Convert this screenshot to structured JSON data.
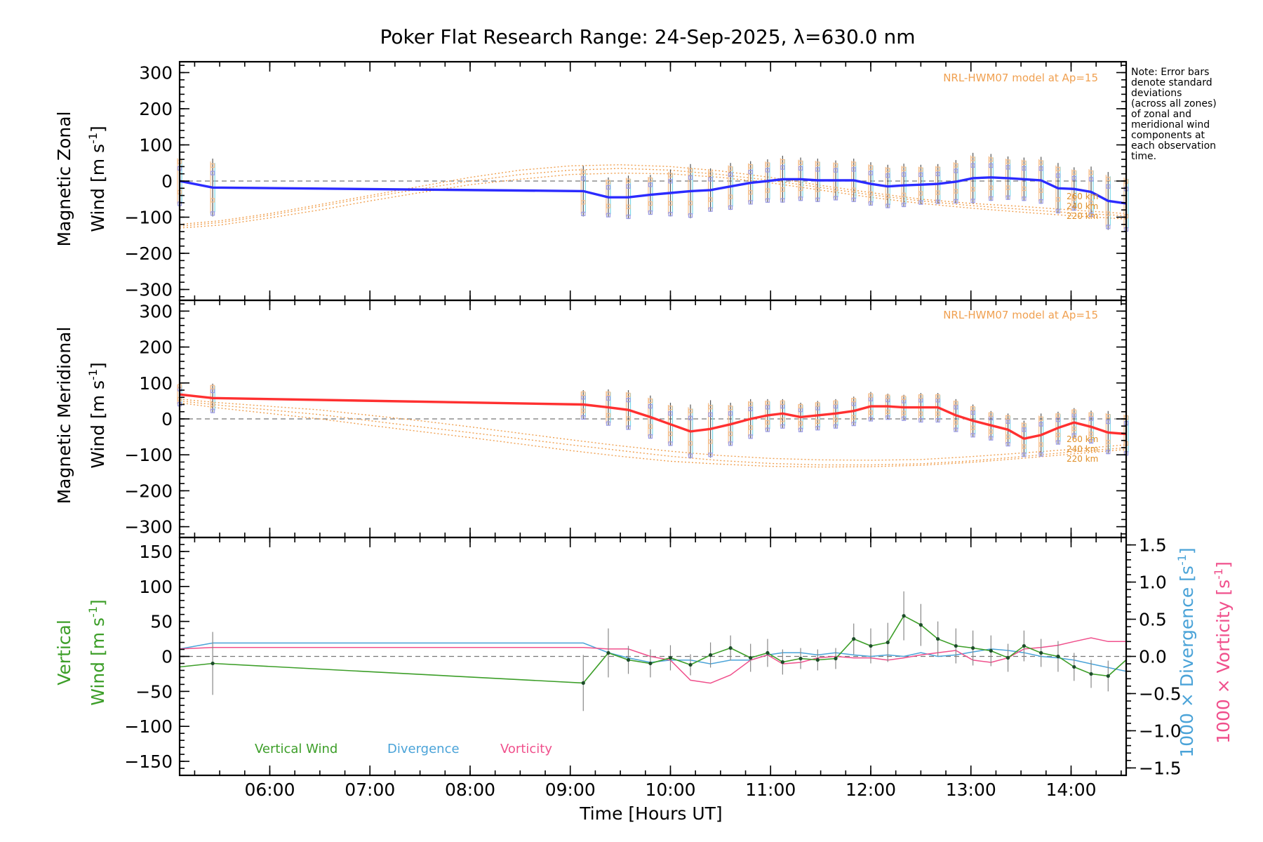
{
  "title": "Poker Flat Research Range: 24-Sep-2025, λ=630.0 nm",
  "note": [
    "Note: Error bars",
    "denote standard",
    "deviations",
    "(across all zones)",
    "of zonal and",
    "meridional wind",
    "components at",
    "each observation",
    "time."
  ],
  "colors": {
    "zonal": "#2b2bff",
    "meridional": "#ff3030",
    "vertical": "#3c9e28",
    "divergence": "#4aa3d8",
    "vorticity": "#f0508c",
    "hwm": "#f0a050",
    "zone_blue": "#9a9ae6",
    "zone_orange": "#f5be8c",
    "zone_cyan": "#7ad8e8",
    "error_dark": "#555555",
    "axis": "#000000",
    "zero": "#777777"
  },
  "x_axis": {
    "label": "Time [Hours UT]",
    "range": [
      5.1,
      14.55
    ],
    "tick_labels": [
      "06:00",
      "07:00",
      "08:00",
      "09:00",
      "10:00",
      "11:00",
      "12:00",
      "13:00",
      "14:00"
    ],
    "tick_values": [
      6,
      7,
      8,
      9,
      10,
      11,
      12,
      13,
      14
    ]
  },
  "chart_data": [
    {
      "type": "line",
      "panel": "zonal",
      "ylabel_line1": "Magnetic Zonal",
      "ylabel_line2": "Wind [m s",
      "ylabel_sup": "-1",
      "ylabel_close": "]",
      "ylim": [
        -330,
        330
      ],
      "y_ticks": [
        -300,
        -200,
        -100,
        0,
        100,
        200,
        300
      ],
      "y_tick_labels": [
        "−300",
        "−200",
        "−100",
        "0",
        "100",
        "200",
        "300"
      ],
      "model_label": "NRL-HWM07 model at Ap=15",
      "altitude_labels": [
        "260 km",
        "240 km",
        "220 km"
      ],
      "x": [
        5.1,
        5.43,
        9.13,
        9.38,
        9.58,
        9.8,
        10.0,
        10.2,
        10.4,
        10.6,
        10.8,
        10.97,
        11.12,
        11.3,
        11.47,
        11.65,
        11.83,
        12.0,
        12.17,
        12.33,
        12.5,
        12.67,
        12.85,
        13.02,
        13.2,
        13.37,
        13.53,
        13.7,
        13.87,
        14.03,
        14.2,
        14.37,
        14.55
      ],
      "series": [
        {
          "name": "Magnetic Zonal Wind",
          "values": [
            0,
            -18,
            -28,
            -45,
            -45,
            -38,
            -33,
            -28,
            -25,
            -15,
            -5,
            0,
            5,
            5,
            2,
            2,
            2,
            -8,
            -15,
            -12,
            -10,
            -8,
            -2,
            8,
            10,
            8,
            5,
            2,
            -20,
            -22,
            -30,
            -55,
            -62
          ]
        }
      ],
      "error_bars": [
        70,
        80,
        70,
        55,
        60,
        55,
        65,
        75,
        60,
        65,
        60,
        60,
        65,
        60,
        60,
        55,
        60,
        60,
        60,
        60,
        55,
        55,
        60,
        70,
        65,
        60,
        60,
        65,
        70,
        60,
        70,
        80,
        80
      ],
      "hwm_model": {
        "x": [
          5.1,
          5.5,
          6.0,
          6.5,
          7.0,
          7.5,
          8.0,
          8.5,
          9.0,
          9.5,
          10.0,
          10.5,
          11.0,
          11.5,
          12.0,
          12.5,
          13.0,
          13.5,
          14.0,
          14.55
        ],
        "series": [
          {
            "name": "260 km",
            "values": [
              -120,
              -110,
              -90,
              -65,
              -40,
              -15,
              10,
              30,
              42,
              45,
              40,
              28,
              10,
              -12,
              -32,
              -50,
              -62,
              -70,
              -80,
              -90
            ]
          },
          {
            "name": "240 km",
            "values": [
              -125,
              -115,
              -95,
              -70,
              -45,
              -22,
              0,
              18,
              30,
              35,
              30,
              18,
              2,
              -18,
              -38,
              -55,
              -68,
              -78,
              -88,
              -96
            ]
          },
          {
            "name": "220 km",
            "values": [
              -130,
              -122,
              -102,
              -80,
              -55,
              -32,
              -10,
              5,
              18,
              22,
              20,
              10,
              -5,
              -25,
              -45,
              -62,
              -75,
              -86,
              -96,
              -105
            ]
          }
        ]
      }
    },
    {
      "type": "line",
      "panel": "meridional",
      "ylabel_line1": "Magnetic Meridional",
      "ylabel_line2": "Wind [m s",
      "ylabel_sup": "-1",
      "ylabel_close": "]",
      "ylim": [
        -330,
        330
      ],
      "y_ticks": [
        -300,
        -200,
        -100,
        0,
        100,
        200,
        300
      ],
      "y_tick_labels": [
        "−300",
        "−200",
        "−100",
        "0",
        "100",
        "200",
        "300"
      ],
      "model_label": "NRL-HWM07 model at Ap=15",
      "altitude_labels": [
        "260 km",
        "240 km",
        "220 km"
      ],
      "x": [
        5.1,
        5.43,
        9.13,
        9.38,
        9.58,
        9.8,
        10.0,
        10.2,
        10.4,
        10.6,
        10.8,
        10.97,
        11.12,
        11.3,
        11.47,
        11.65,
        11.83,
        12.0,
        12.17,
        12.33,
        12.5,
        12.67,
        12.85,
        13.02,
        13.2,
        13.37,
        13.53,
        13.7,
        13.87,
        14.03,
        14.2,
        14.37,
        14.55
      ],
      "series": [
        {
          "name": "Magnetic Meridional Wind",
          "values": [
            68,
            58,
            40,
            32,
            25,
            5,
            -15,
            -35,
            -28,
            -15,
            0,
            10,
            15,
            5,
            10,
            15,
            22,
            35,
            35,
            32,
            32,
            32,
            10,
            -5,
            -18,
            -30,
            -55,
            -45,
            -25,
            -10,
            -22,
            -38,
            -42
          ]
        }
      ],
      "error_bars": [
        30,
        40,
        40,
        50,
        55,
        60,
        60,
        75,
        80,
        60,
        55,
        45,
        40,
        40,
        40,
        40,
        40,
        40,
        35,
        35,
        40,
        40,
        45,
        45,
        40,
        45,
        50,
        60,
        45,
        40,
        45,
        60,
        60
      ],
      "hwm_model": {
        "x": [
          5.1,
          5.5,
          6.0,
          6.5,
          7.0,
          7.5,
          8.0,
          8.5,
          9.0,
          9.5,
          10.0,
          10.5,
          11.0,
          11.5,
          12.0,
          12.5,
          13.0,
          13.5,
          14.0,
          14.55
        ],
        "series": [
          {
            "name": "260 km",
            "values": [
              55,
              45,
              35,
              25,
              10,
              -5,
              -22,
              -40,
              -58,
              -75,
              -90,
              -102,
              -110,
              -114,
              -115,
              -113,
              -105,
              -95,
              -85,
              -72
            ]
          },
          {
            "name": "240 km",
            "values": [
              50,
              38,
              25,
              12,
              -5,
              -22,
              -38,
              -55,
              -72,
              -88,
              -104,
              -116,
              -124,
              -128,
              -128,
              -125,
              -117,
              -105,
              -92,
              -80
            ]
          },
          {
            "name": "220 km",
            "values": [
              45,
              30,
              15,
              0,
              -18,
              -35,
              -52,
              -70,
              -88,
              -104,
              -118,
              -126,
              -132,
              -134,
              -133,
              -129,
              -121,
              -110,
              -98,
              -85
            ]
          }
        ]
      }
    },
    {
      "type": "line",
      "panel": "vertical",
      "ylabel_line1": "Vertical",
      "ylabel_line2": "Wind [m s",
      "ylabel_sup": "-1",
      "ylabel_close": "]",
      "ylim": [
        -170,
        170
      ],
      "y_ticks": [
        -150,
        -100,
        -50,
        0,
        50,
        100,
        150
      ],
      "y_tick_labels": [
        "−150",
        "−100",
        "−50",
        "0",
        "50",
        "100",
        "150"
      ],
      "right_axis": {
        "ylim": [
          -1.6,
          1.6
        ],
        "ticks": [
          -1.5,
          -1.0,
          -0.5,
          0.0,
          0.5,
          1.0,
          1.5
        ],
        "tick_labels": [
          "−1.5",
          "−1.0",
          "−0.5",
          "0.0",
          "0.5",
          "1.0",
          "1.5"
        ],
        "label_div_pre": "1000 × Divergence [s",
        "label_vor_pre": "1000 × Vorticity [s",
        "label_sup": "-1",
        "label_close": "]"
      },
      "legend": [
        "Vertical Wind",
        "Divergence",
        "Vorticity"
      ],
      "x": [
        5.1,
        5.43,
        9.13,
        9.38,
        9.58,
        9.8,
        10.0,
        10.2,
        10.4,
        10.6,
        10.8,
        10.97,
        11.12,
        11.3,
        11.47,
        11.65,
        11.83,
        12.0,
        12.17,
        12.33,
        12.5,
        12.67,
        12.85,
        13.02,
        13.2,
        13.37,
        13.53,
        13.7,
        13.87,
        14.03,
        14.2,
        14.37,
        14.55
      ],
      "series": [
        {
          "name": "Vertical Wind",
          "axis": "left",
          "values": [
            -15,
            -10,
            -38,
            5,
            -5,
            -10,
            -2,
            -12,
            2,
            12,
            -2,
            5,
            -8,
            -3,
            -5,
            -3,
            25,
            15,
            20,
            58,
            45,
            25,
            15,
            12,
            8,
            -2,
            15,
            5,
            0,
            -15,
            -25,
            -28,
            -5
          ]
        },
        {
          "name": "Divergence",
          "axis": "right",
          "values": [
            0.1,
            0.18,
            0.18,
            0.05,
            -0.02,
            -0.08,
            -0.05,
            -0.05,
            -0.1,
            -0.05,
            -0.05,
            0.02,
            0.05,
            0.05,
            0.02,
            0.05,
            0.02,
            0.0,
            0.02,
            0.0,
            0.05,
            0.0,
            0.02,
            0.06,
            0.1,
            0.08,
            0.05,
            0.0,
            -0.02,
            -0.05,
            -0.1,
            -0.15,
            -0.2
          ]
        },
        {
          "name": "Vorticity",
          "axis": "right",
          "values": [
            0.1,
            0.12,
            0.12,
            0.1,
            0.1,
            0.0,
            -0.05,
            -0.32,
            -0.36,
            -0.25,
            -0.05,
            0.02,
            -0.1,
            -0.08,
            -0.02,
            0.0,
            -0.02,
            -0.02,
            -0.05,
            -0.02,
            0.02,
            0.05,
            0.08,
            -0.05,
            -0.08,
            -0.02,
            0.1,
            0.12,
            0.15,
            0.2,
            0.25,
            0.2,
            0.2
          ]
        }
      ],
      "error_bars": [
        40,
        45,
        40,
        35,
        20,
        20,
        18,
        15,
        18,
        18,
        20,
        20,
        18,
        15,
        15,
        15,
        22,
        25,
        28,
        35,
        30,
        25,
        25,
        25,
        22,
        20,
        22,
        20,
        22,
        20,
        20,
        22,
        25
      ]
    }
  ]
}
